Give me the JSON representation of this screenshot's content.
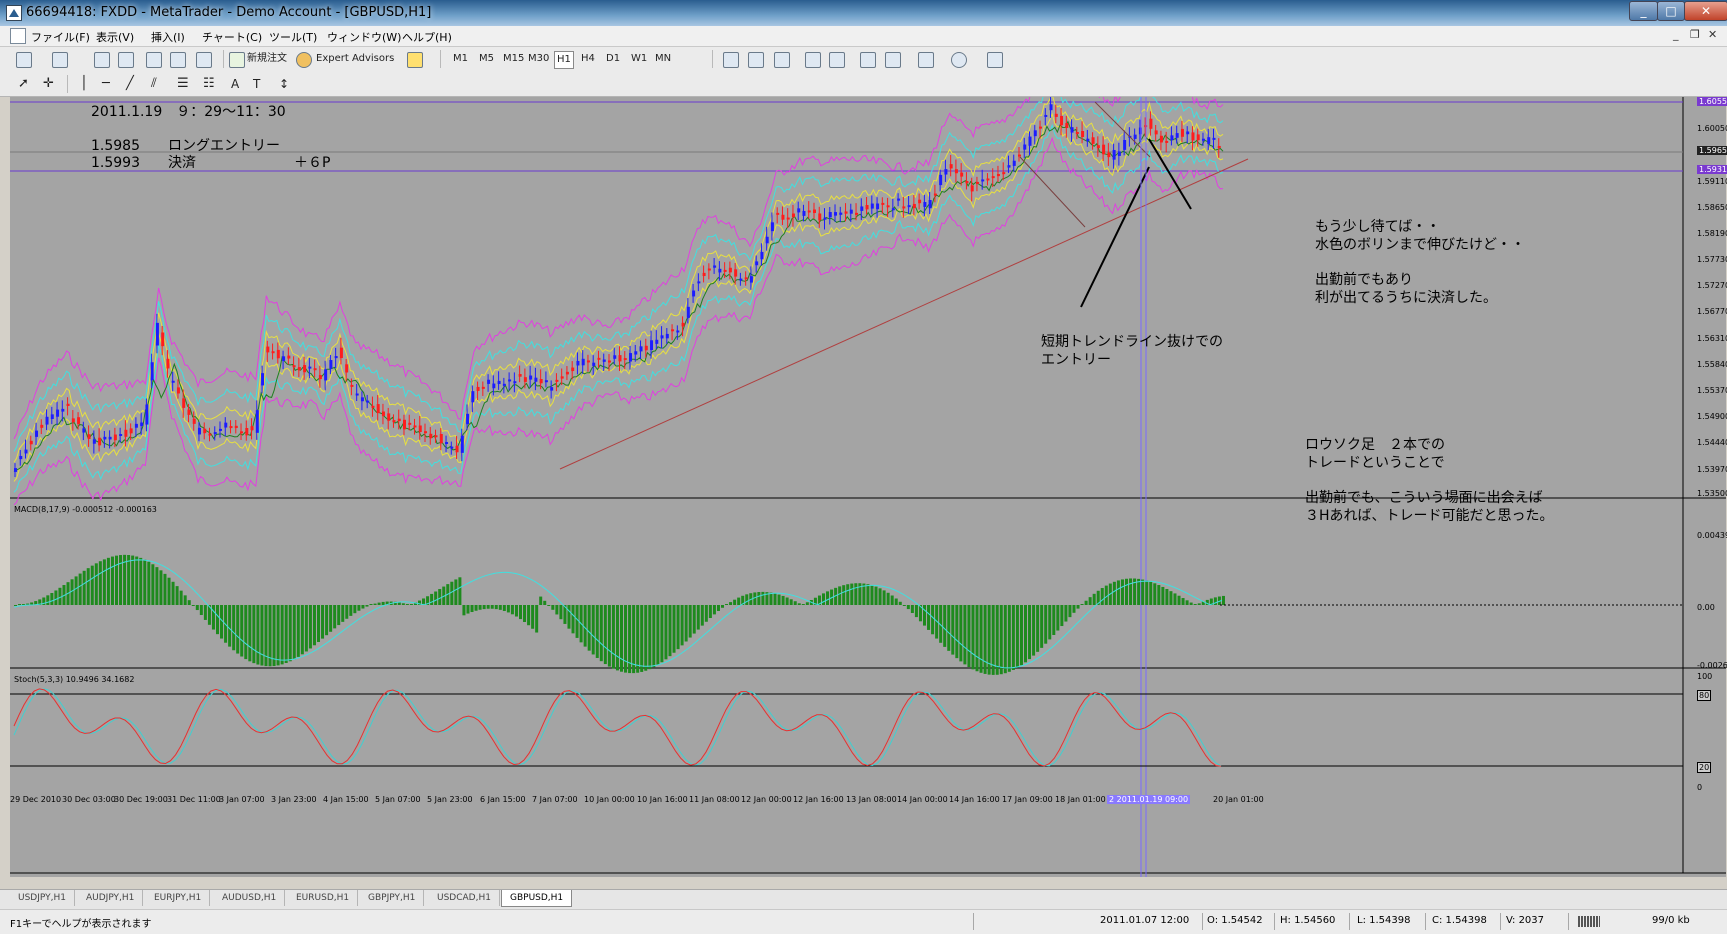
{
  "window": {
    "title": "66694418: FXDD - MetaTrader - Demo Account - [GBPUSD,H1]",
    "controls": [
      "_",
      "□",
      "✕"
    ]
  },
  "menu": {
    "items": [
      "ファイル(F)",
      "表示(V)",
      "挿入(I)",
      "チャート(C)",
      "ツール(T)",
      "ウィンドウ(W)",
      "ヘルプ(H)"
    ],
    "mdi_controls": [
      "_",
      "❐",
      "✕"
    ]
  },
  "toolbar": {
    "new_order_label": "新規注文",
    "expert_advisors_label": "Expert Advisors",
    "timeframes": [
      "M1",
      "M5",
      "M15",
      "M30",
      "H1",
      "H4",
      "D1",
      "W1",
      "MN"
    ],
    "active_timeframe": "H1"
  },
  "chart": {
    "symbol": "GBPUSD,H1",
    "colors": {
      "background": "#a4a4a4",
      "bull": "#1c1cff",
      "bear": "#ff1c1c",
      "bollinger_outer": "#e040e0",
      "bollinger_inner": "#40e0e0",
      "bollinger_mid": "#e8e040",
      "ma": "#208020",
      "trendline": "#b04040",
      "level_line": "#6a3ad0",
      "macd": "#1e8a1e",
      "signal": "#40e0e0",
      "stoch_main": "#e83030",
      "stoch_signal": "#40d0d0"
    },
    "price_axis": [
      "1.60557",
      "1.60050",
      "1.59650",
      "1.59315",
      "1.59110",
      "1.58650",
      "1.58190",
      "1.57730",
      "1.57270",
      "1.56770",
      "1.56310",
      "1.55840",
      "1.55370",
      "1.54900",
      "1.54440",
      "1.53970",
      "1.53500"
    ],
    "time_axis": [
      "29 Dec 2010",
      "30 Dec 03:00",
      "30 Dec 19:00",
      "31 Dec 11:00",
      "3 Jan 07:00",
      "3 Jan 23:00",
      "4 Jan 15:00",
      "5 Jan 07:00",
      "5 Jan 23:00",
      "6 Jan 15:00",
      "7 Jan 07:00",
      "10 Jan 00:00",
      "10 Jan 16:00",
      "11 Jan 08:00",
      "12 Jan 00:00",
      "12 Jan 16:00",
      "13 Jan 08:00",
      "14 Jan 00:00",
      "14 Jan 16:00",
      "17 Jan 09:00",
      "18 Jan 01:00",
      "2 2011.01.19 09:00",
      "20 Jan 01:00"
    ],
    "highlighted_time": "2 2011.01.19 09:00",
    "macd_label": "MACD(8,17,9) -0.000512 -0.000163",
    "macd_axis": [
      "0.004391",
      "0.00",
      "-0.00261"
    ],
    "stoch_label": "Stoch(5,3,3) 10.9496 34.1682",
    "stoch_axis": [
      "100",
      "80",
      "20",
      "0"
    ]
  },
  "annotations": {
    "header_date": "2011.1.19　９：29～11：30",
    "entry_line": "1.5985　　ロングエントリー",
    "exit_line": "1.5993　　決済　　　　　　　＋６P",
    "note1": "もう少し待てば・・\n水色のボリンまで伸びたけど・・",
    "note2": "出勤前でもあり\n利が出てるうちに決済した。",
    "note3": "短期トレンドライン抜けでの\nエントリー",
    "note4": "ロウソク足　２本での\nトレードということで",
    "note5": "出勤前でも、こういう場面に出会えば\n３Hあれば、トレード可能だと思った。"
  },
  "tabs": [
    "USDJPY,H1",
    "AUDJPY,H1",
    "EURJPY,H1",
    "AUDUSD,H1",
    "EURUSD,H1",
    "GBPJPY,H1",
    "USDCAD,H1",
    "GBPUSD,H1"
  ],
  "active_tab": "GBPUSD,H1",
  "status": {
    "help": "F1キーでヘルプが表示されます",
    "time": "2011.01.07 12:00",
    "open": "O: 1.54542",
    "high": "H: 1.54560",
    "low": "L: 1.54398",
    "close": "C: 1.54398",
    "volume": "V: 2037",
    "traffic": "99/0 kb"
  }
}
